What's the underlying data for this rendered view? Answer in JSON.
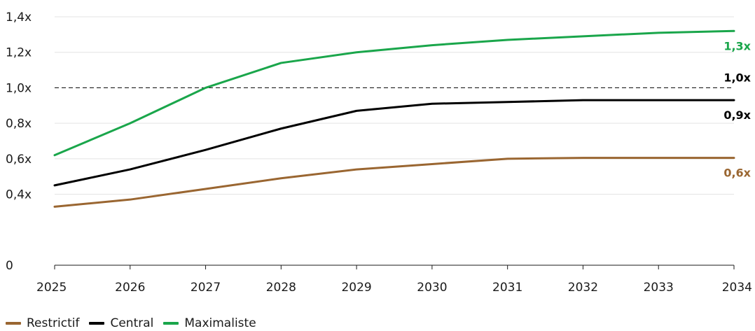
{
  "chart_data": {
    "type": "line",
    "categories": [
      "2025",
      "2026",
      "2027",
      "2028",
      "2029",
      "2030",
      "2031",
      "2032",
      "2033",
      "2034"
    ],
    "ylim": [
      0,
      1.4
    ],
    "yticks": [
      {
        "value": 0,
        "label": "0"
      },
      {
        "value": 0.4,
        "label": "0,4x"
      },
      {
        "value": 0.6,
        "label": "0,6x"
      },
      {
        "value": 0.8,
        "label": "0,8x"
      },
      {
        "value": 1.0,
        "label": "1,0x"
      },
      {
        "value": 1.2,
        "label": "1,2x"
      },
      {
        "value": 1.4,
        "label": "1,4x"
      }
    ],
    "grid": true,
    "reference_line": {
      "value": 1.0,
      "style": "dashed",
      "label": "1,0x",
      "color": "#000000"
    },
    "series": [
      {
        "name": "Restrictif",
        "color": "#9a6631",
        "end_label": "0,6x",
        "values": [
          0.33,
          0.37,
          0.43,
          0.49,
          0.54,
          0.57,
          0.6,
          0.605,
          0.605,
          0.605
        ]
      },
      {
        "name": "Central",
        "color": "#000000",
        "end_label": "0,9x",
        "values": [
          0.45,
          0.54,
          0.65,
          0.77,
          0.87,
          0.91,
          0.92,
          0.93,
          0.93,
          0.93
        ]
      },
      {
        "name": "Maximaliste",
        "color": "#1aa64b",
        "end_label": "1,3x",
        "values": [
          0.62,
          0.8,
          1.0,
          1.14,
          1.2,
          1.24,
          1.27,
          1.29,
          1.31,
          1.32
        ]
      }
    ],
    "legend_position": "bottom-left"
  }
}
